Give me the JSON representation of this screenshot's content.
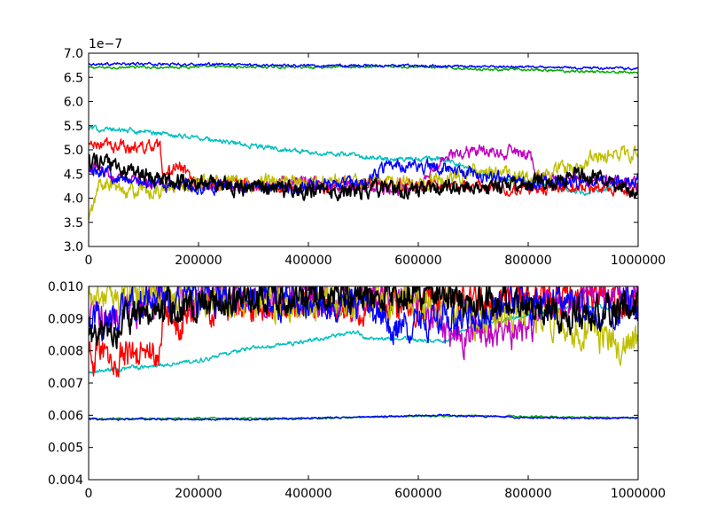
{
  "chart_data": [
    {
      "type": "line",
      "title": "",
      "xlabel": "",
      "ylabel": "",
      "offset_text": "1e−7",
      "xlim": [
        0,
        1000000
      ],
      "ylim": [
        3.0,
        7.0
      ],
      "grid": false,
      "legend": "none",
      "x_ticks": [
        0,
        200000,
        400000,
        600000,
        800000,
        1000000
      ],
      "x_tick_labels": [
        "0",
        "200000",
        "400000",
        "600000",
        "800000",
        "1000000"
      ],
      "y_ticks": [
        3.0,
        3.5,
        4.0,
        4.5,
        5.0,
        5.5,
        6.0,
        6.5,
        7.0
      ],
      "y_tick_labels": [
        "3.0",
        "3.5",
        "4.0",
        "4.5",
        "5.0",
        "5.5",
        "6.0",
        "6.5",
        "7.0"
      ],
      "series": [
        {
          "color": "#00aa00",
          "points": [
            [
              0,
              6.7
            ],
            [
              200000,
              6.72
            ],
            [
              400000,
              6.71
            ],
            [
              600000,
              6.72
            ],
            [
              720000,
              6.67
            ],
            [
              1000000,
              6.6
            ]
          ],
          "noise": 0.02
        },
        {
          "color": "#0000ff",
          "points": [
            [
              0,
              6.78
            ],
            [
              200000,
              6.77
            ],
            [
              400000,
              6.75
            ],
            [
              600000,
              6.74
            ],
            [
              800000,
              6.71
            ],
            [
              1000000,
              6.68
            ]
          ],
          "noise": 0.02
        },
        {
          "color": "#00bfbf",
          "points": [
            [
              0,
              5.45
            ],
            [
              100000,
              5.38
            ],
            [
              200000,
              5.25
            ],
            [
              300000,
              5.08
            ],
            [
              400000,
              4.95
            ],
            [
              490000,
              4.88
            ],
            [
              500000,
              4.83
            ],
            [
              650000,
              4.8
            ],
            [
              700000,
              4.55
            ],
            [
              800000,
              4.32
            ],
            [
              900000,
              4.12
            ],
            [
              1000000,
              4.3
            ]
          ],
          "noise": 0.04
        },
        {
          "color": "#ff0000",
          "points": [
            [
              0,
              5.1
            ],
            [
              100000,
              5.05
            ],
            [
              130000,
              5.05
            ],
            [
              135000,
              4.3
            ],
            [
              160000,
              4.7
            ],
            [
              200000,
              4.3
            ],
            [
              400000,
              4.25
            ],
            [
              600000,
              4.3
            ],
            [
              800000,
              4.2
            ],
            [
              1000000,
              4.2
            ]
          ],
          "noise": 0.1
        },
        {
          "color": "#bf00bf",
          "points": [
            [
              0,
              4.7
            ],
            [
              100000,
              4.3
            ],
            [
              200000,
              4.25
            ],
            [
              400000,
              4.3
            ],
            [
              600000,
              4.2
            ],
            [
              650000,
              4.9
            ],
            [
              700000,
              5.0
            ],
            [
              800000,
              4.9
            ],
            [
              820000,
              4.4
            ],
            [
              1000000,
              4.3
            ]
          ],
          "noise": 0.1
        },
        {
          "color": "#bfbf00",
          "points": [
            [
              0,
              3.5
            ],
            [
              20000,
              4.3
            ],
            [
              100000,
              4.1
            ],
            [
              200000,
              4.3
            ],
            [
              400000,
              4.35
            ],
            [
              600000,
              4.3
            ],
            [
              700000,
              4.55
            ],
            [
              800000,
              4.4
            ],
            [
              950000,
              4.9
            ],
            [
              1000000,
              4.9
            ]
          ],
          "noise": 0.12
        },
        {
          "color": "#0000ff",
          "points": [
            [
              0,
              4.6
            ],
            [
              100000,
              4.3
            ],
            [
              300000,
              4.2
            ],
            [
              500000,
              4.3
            ],
            [
              550000,
              4.7
            ],
            [
              650000,
              4.6
            ],
            [
              800000,
              4.3
            ],
            [
              1000000,
              4.4
            ]
          ],
          "noise": 0.1
        },
        {
          "color": "#000000",
          "points": [
            [
              0,
              4.8
            ],
            [
              100000,
              4.5
            ],
            [
              200000,
              4.3
            ],
            [
              400000,
              4.15
            ],
            [
              600000,
              4.2
            ],
            [
              800000,
              4.25
            ],
            [
              900000,
              4.5
            ],
            [
              1000000,
              4.2
            ]
          ],
          "noise": 0.13
        }
      ]
    },
    {
      "type": "line",
      "title": "",
      "xlabel": "",
      "ylabel": "",
      "xlim": [
        0,
        1000000
      ],
      "ylim": [
        0.004,
        0.01
      ],
      "grid": false,
      "legend": "none",
      "x_ticks": [
        0,
        200000,
        400000,
        600000,
        800000,
        1000000
      ],
      "x_tick_labels": [
        "0",
        "200000",
        "400000",
        "600000",
        "800000",
        "1000000"
      ],
      "y_ticks": [
        0.004,
        0.005,
        0.006,
        0.007,
        0.008,
        0.009,
        0.01
      ],
      "y_tick_labels": [
        "0.004",
        "0.005",
        "0.006",
        "0.007",
        "0.008",
        "0.009",
        "0.010"
      ],
      "series": [
        {
          "color": "#00aa00",
          "points": [
            [
              0,
              0.0059
            ],
            [
              400000,
              0.0059
            ],
            [
              600000,
              0.00598
            ],
            [
              700000,
              0.00598
            ],
            [
              1000000,
              0.00592
            ]
          ],
          "noise": 2e-05
        },
        {
          "color": "#0000ff",
          "points": [
            [
              0,
              0.00588
            ],
            [
              300000,
              0.00587
            ],
            [
              500000,
              0.00595
            ],
            [
              650000,
              0.006
            ],
            [
              800000,
              0.00592
            ],
            [
              1000000,
              0.00591
            ]
          ],
          "noise": 2e-05
        },
        {
          "color": "#00bfbf",
          "points": [
            [
              0,
              0.00735
            ],
            [
              100000,
              0.0075
            ],
            [
              200000,
              0.0077
            ],
            [
              300000,
              0.0081
            ],
            [
              400000,
              0.0083
            ],
            [
              490000,
              0.0086
            ],
            [
              500000,
              0.0084
            ],
            [
              650000,
              0.0083
            ],
            [
              700000,
              0.0088
            ],
            [
              800000,
              0.0091
            ],
            [
              900000,
              0.0094
            ],
            [
              1000000,
              0.0093
            ]
          ],
          "noise": 5e-05
        },
        {
          "color": "#ff0000",
          "points": [
            [
              0,
              0.0078
            ],
            [
              130000,
              0.008
            ],
            [
              135000,
              0.0093
            ],
            [
              160000,
              0.0087
            ],
            [
              200000,
              0.0094
            ],
            [
              400000,
              0.0095
            ],
            [
              600000,
              0.0094
            ],
            [
              800000,
              0.0096
            ],
            [
              1000000,
              0.0096
            ]
          ],
          "noise": 0.0004
        },
        {
          "color": "#bf00bf",
          "points": [
            [
              0,
              0.0089
            ],
            [
              100000,
              0.0095
            ],
            [
              200000,
              0.0096
            ],
            [
              400000,
              0.0096
            ],
            [
              600000,
              0.0097
            ],
            [
              650000,
              0.0086
            ],
            [
              700000,
              0.0084
            ],
            [
              800000,
              0.0086
            ],
            [
              820000,
              0.0094
            ],
            [
              1000000,
              0.0097
            ]
          ],
          "noise": 0.0004
        },
        {
          "color": "#bfbf00",
          "points": [
            [
              0,
              0.0098
            ],
            [
              100000,
              0.0098
            ],
            [
              200000,
              0.0095
            ],
            [
              400000,
              0.0094
            ],
            [
              600000,
              0.0096
            ],
            [
              700000,
              0.009
            ],
            [
              800000,
              0.0092
            ],
            [
              950000,
              0.0083
            ],
            [
              1000000,
              0.0083
            ]
          ],
          "noise": 0.0004
        },
        {
          "color": "#0000ff",
          "points": [
            [
              0,
              0.0088
            ],
            [
              100000,
              0.0095
            ],
            [
              300000,
              0.0097
            ],
            [
              500000,
              0.0095
            ],
            [
              550000,
              0.0088
            ],
            [
              650000,
              0.009
            ],
            [
              800000,
              0.0095
            ],
            [
              1000000,
              0.0093
            ]
          ],
          "noise": 0.0004
        },
        {
          "color": "#000000",
          "points": [
            [
              0,
              0.0083
            ],
            [
              100000,
              0.0092
            ],
            [
              200000,
              0.0095
            ],
            [
              400000,
              0.0098
            ],
            [
              600000,
              0.0097
            ],
            [
              800000,
              0.0094
            ],
            [
              900000,
              0.009
            ],
            [
              1000000,
              0.0096
            ]
          ],
          "noise": 0.0004
        }
      ]
    }
  ]
}
